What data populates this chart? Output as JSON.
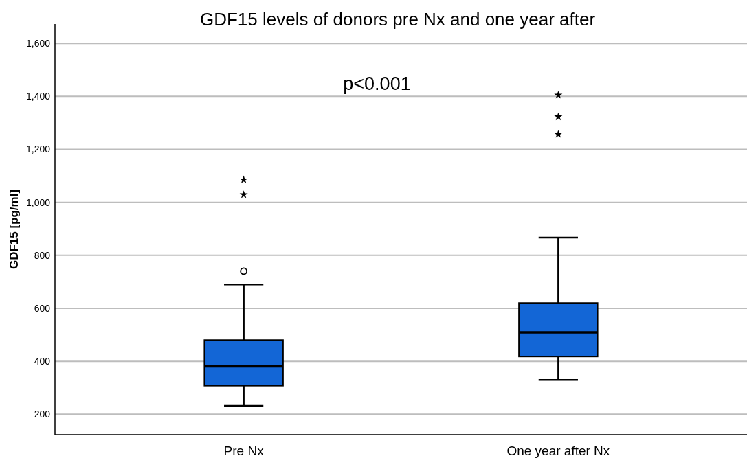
{
  "chart_data": {
    "type": "box",
    "title": "GDF15 levels of donors pre Nx and one year after",
    "ylabel": "GDF15 [pg/ml]",
    "categories": [
      "Pre Nx",
      "One year after Nx"
    ],
    "ylim": [
      123,
      1673
    ],
    "yticks": [
      200,
      400,
      600,
      800,
      {
        "value": 1000,
        "label": "1,000"
      },
      {
        "value": 1200,
        "label": "1,200"
      },
      {
        "value": 1400,
        "label": "1,400"
      },
      {
        "value": 1600,
        "label": "1,600"
      }
    ],
    "grid": "y",
    "annotations": [
      "p<0.001"
    ],
    "series": [
      {
        "color": "#1366d6",
        "boxes": [
          {
            "low": 232,
            "q1": 308,
            "median": 381,
            "q3": 480,
            "high": 690,
            "outliers": [
              740
            ]
          },
          {
            "low": 330,
            "q1": 418,
            "median": 509,
            "q3": 620,
            "high": 867
          }
        ]
      },
      {
        "type": "scatter",
        "marker": "star",
        "color": "#000000",
        "x": [
          "Pre Nx",
          "Pre Nx",
          "One year after Nx",
          "One year after Nx",
          "One year after Nx"
        ],
        "values": [
          1085,
          1029,
          1405,
          1323,
          1257
        ]
      }
    ]
  }
}
